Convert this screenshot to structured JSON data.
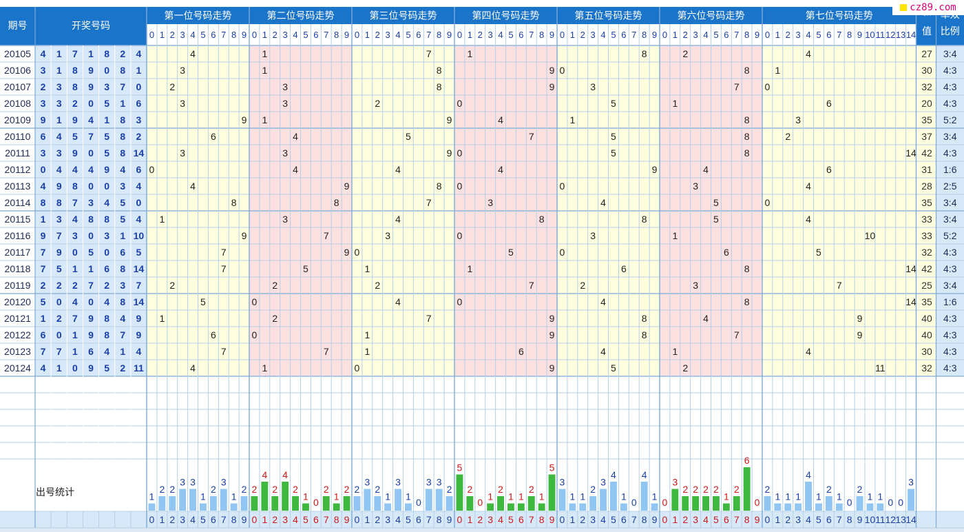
{
  "header": {
    "issue_label": "期号",
    "draw_label": "开奖号码",
    "sum_label": "和值",
    "ratio_label": "单双比例",
    "stats_label": "出号统计",
    "watermark": "cz89.com"
  },
  "chart_data": {
    "type": "table",
    "position_titles": [
      "第一位号码走势",
      "第二位号码走势",
      "第三位号码走势",
      "第四位号码走势",
      "第五位号码走势",
      "第六位号码走势",
      "第七位号码走势"
    ],
    "position_digit_ranges": [
      [
        0,
        9
      ],
      [
        0,
        9
      ],
      [
        0,
        9
      ],
      [
        0,
        9
      ],
      [
        0,
        9
      ],
      [
        0,
        9
      ],
      [
        0,
        14
      ]
    ],
    "rows": [
      {
        "issue": "20105",
        "numbers": [
          4,
          1,
          7,
          1,
          8,
          2,
          4
        ],
        "sum": 27,
        "ratio": "3:4"
      },
      {
        "issue": "20106",
        "numbers": [
          3,
          1,
          8,
          9,
          0,
          8,
          1
        ],
        "sum": 30,
        "ratio": "4:3"
      },
      {
        "issue": "20107",
        "numbers": [
          2,
          3,
          8,
          9,
          3,
          7,
          0
        ],
        "sum": 32,
        "ratio": "4:3"
      },
      {
        "issue": "20108",
        "numbers": [
          3,
          3,
          2,
          0,
          5,
          1,
          6
        ],
        "sum": 20,
        "ratio": "4:3"
      },
      {
        "issue": "20109",
        "numbers": [
          9,
          1,
          9,
          4,
          1,
          8,
          3
        ],
        "sum": 35,
        "ratio": "5:2"
      },
      {
        "issue": "20110",
        "numbers": [
          6,
          4,
          5,
          7,
          5,
          8,
          2
        ],
        "sum": 37,
        "ratio": "3:4"
      },
      {
        "issue": "20111",
        "numbers": [
          3,
          3,
          9,
          0,
          5,
          8,
          14
        ],
        "sum": 42,
        "ratio": "4:3"
      },
      {
        "issue": "20112",
        "numbers": [
          0,
          4,
          4,
          4,
          9,
          4,
          6
        ],
        "sum": 31,
        "ratio": "1:6"
      },
      {
        "issue": "20113",
        "numbers": [
          4,
          9,
          8,
          0,
          0,
          3,
          4
        ],
        "sum": 28,
        "ratio": "2:5"
      },
      {
        "issue": "20114",
        "numbers": [
          8,
          8,
          7,
          3,
          4,
          5,
          0
        ],
        "sum": 35,
        "ratio": "3:4"
      },
      {
        "issue": "20115",
        "numbers": [
          1,
          3,
          4,
          8,
          8,
          5,
          4
        ],
        "sum": 33,
        "ratio": "3:4"
      },
      {
        "issue": "20116",
        "numbers": [
          9,
          7,
          3,
          0,
          3,
          1,
          10
        ],
        "sum": 33,
        "ratio": "5:2"
      },
      {
        "issue": "20117",
        "numbers": [
          7,
          9,
          0,
          5,
          0,
          6,
          5
        ],
        "sum": 32,
        "ratio": "4:3"
      },
      {
        "issue": "20118",
        "numbers": [
          7,
          5,
          1,
          1,
          6,
          8,
          14
        ],
        "sum": 42,
        "ratio": "4:3"
      },
      {
        "issue": "20119",
        "numbers": [
          2,
          2,
          2,
          7,
          2,
          3,
          7
        ],
        "sum": 25,
        "ratio": "3:4"
      },
      {
        "issue": "20120",
        "numbers": [
          5,
          0,
          4,
          0,
          4,
          8,
          14
        ],
        "sum": 35,
        "ratio": "1:6"
      },
      {
        "issue": "20121",
        "numbers": [
          1,
          2,
          7,
          9,
          8,
          4,
          9
        ],
        "sum": 40,
        "ratio": "4:3"
      },
      {
        "issue": "20122",
        "numbers": [
          6,
          0,
          1,
          9,
          8,
          7,
          9
        ],
        "sum": 40,
        "ratio": "4:3"
      },
      {
        "issue": "20123",
        "numbers": [
          7,
          7,
          1,
          6,
          4,
          1,
          4
        ],
        "sum": 30,
        "ratio": "4:3"
      },
      {
        "issue": "20124",
        "numbers": [
          4,
          1,
          0,
          9,
          5,
          2,
          11
        ],
        "sum": 32,
        "ratio": "4:3"
      }
    ],
    "stats": [
      [
        1,
        2,
        2,
        3,
        3,
        1,
        2,
        3,
        1,
        2
      ],
      [
        2,
        4,
        2,
        4,
        2,
        1,
        0,
        2,
        1,
        2
      ],
      [
        2,
        3,
        2,
        1,
        3,
        1,
        0,
        3,
        3,
        2
      ],
      [
        5,
        2,
        0,
        1,
        2,
        1,
        1,
        2,
        1,
        5
      ],
      [
        3,
        1,
        1,
        2,
        3,
        4,
        1,
        0,
        4,
        1
      ],
      [
        0,
        3,
        2,
        2,
        2,
        2,
        1,
        2,
        6,
        0
      ],
      [
        2,
        1,
        1,
        1,
        4,
        1,
        2,
        1,
        0,
        2,
        1,
        1,
        0,
        0,
        3
      ]
    ],
    "colors": {
      "header_bg": "#1a74c9",
      "band_yellow": "#ffffe0",
      "band_pink": "#fde0e0",
      "band_blue": "#d7e8f8",
      "grid_line": "#b5cfe6",
      "bar_blue": "#92c6f2",
      "bar_green": "#3fb83f",
      "text_blue": "#1a3faa",
      "text_red": "#d01818"
    }
  }
}
